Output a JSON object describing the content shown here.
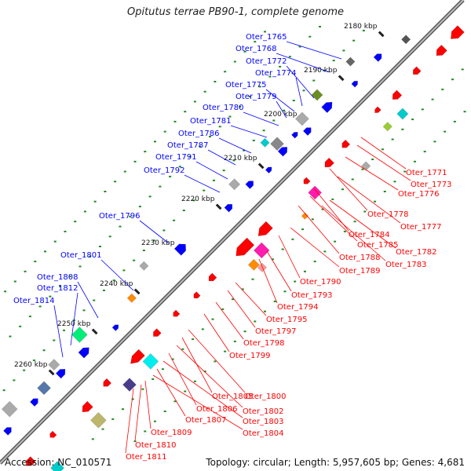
{
  "title": "Opitutus terrae PB90-1, complete genome",
  "footer": {
    "accession": "Accession: NC_010571",
    "summary": "Topology: circular; Length: 5,957,605 bp; Genes: 4,681"
  },
  "colors": {
    "forward_label": "#0000ff",
    "reverse_label": "#ff0000",
    "backbone": "#888888",
    "dots": "#228b22"
  },
  "ticks": [
    "2180 kbp",
    "2190 kbp",
    "2200 kbp",
    "2210 kbp",
    "2220 kbp",
    "2230 kbp",
    "2240 kbp",
    "2250 kbp",
    "2260 kbp"
  ],
  "forward_genes": [
    "Oter_1765",
    "Oter_1768",
    "Oter_1772",
    "Oter_1774",
    "Oter_1775",
    "Oter_1779",
    "Oter_1780",
    "Oter_1781",
    "Oter_1786",
    "Oter_1787",
    "Oter_1791",
    "Oter_1792",
    "Oter_1796",
    "Oter_1801",
    "Oter_1808",
    "Oter_1812",
    "Oter_1814"
  ],
  "reverse_genes": [
    "Oter_1771",
    "Oter_1773",
    "Oter_1776",
    "Oter_1778",
    "Oter_1777",
    "Oter_1784",
    "Oter_1785",
    "Oter_1788",
    "Oter_1782",
    "Oter_1783",
    "Oter_1789",
    "Oter_1790",
    "Oter_1793",
    "Oter_1794",
    "Oter_1795",
    "Oter_1797",
    "Oter_1798",
    "Oter_1799",
    "Oter_1800",
    "Oter_1805",
    "Oter_1802",
    "Oter_1806",
    "Oter_1803",
    "Oter_1807",
    "Oter_1804",
    "Oter_1809",
    "Oter_1810",
    "Oter_1811"
  ]
}
